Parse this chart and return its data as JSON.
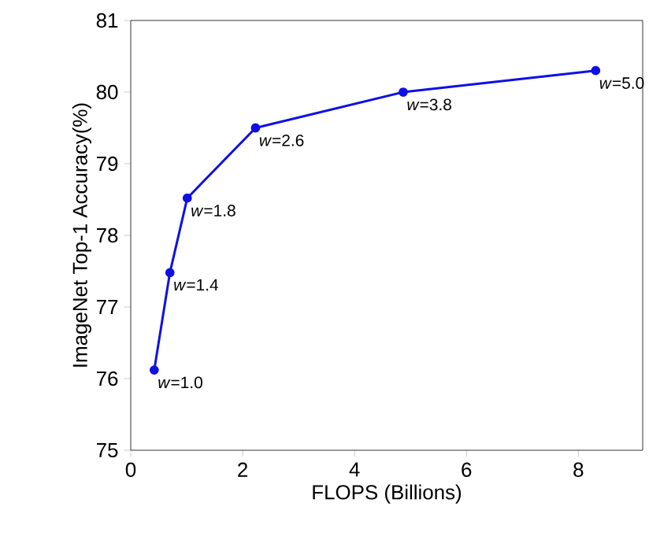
{
  "chart_data": {
    "type": "line",
    "xlabel": "FLOPS (Billions)",
    "ylabel": "ImageNet Top-1 Accuracy(%)",
    "x": [
      0.42,
      0.7,
      1.01,
      2.23,
      4.87,
      8.31
    ],
    "series": [
      {
        "color": "#0f0fe6",
        "values": [
          76.12,
          77.48,
          78.52,
          79.5,
          80.0,
          80.3
        ]
      }
    ],
    "xlim": [
      0,
      9.15
    ],
    "ylim": [
      75,
      81
    ],
    "xticks": [
      0,
      2,
      4,
      6,
      8
    ],
    "yticks": [
      75,
      76,
      77,
      78,
      79,
      80,
      81
    ],
    "marker": "circle",
    "grid": false,
    "annotations": [
      {
        "text": "*w*=1.0",
        "x": 0.42,
        "y": 76.12
      },
      {
        "text": "*w*=1.4",
        "x": 0.7,
        "y": 77.48
      },
      {
        "text": "*w*=1.8",
        "x": 1.01,
        "y": 78.52
      },
      {
        "text": "*w*=2.6",
        "x": 2.23,
        "y": 79.5
      },
      {
        "text": "*w*=3.8",
        "x": 4.87,
        "y": 80.0
      },
      {
        "text": "*w*=5.0",
        "x": 8.31,
        "y": 80.3
      }
    ]
  }
}
